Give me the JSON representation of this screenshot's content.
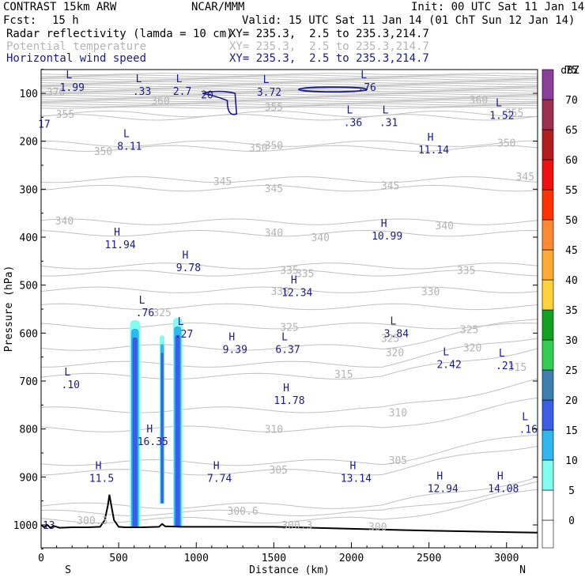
{
  "header": {
    "model": "CONTRAST 15km ARW",
    "org": "NCAR/MMM",
    "init": "Init: 00 UTC Sat 11 Jan 14",
    "fcst_label": "Fcst:",
    "fcst_value": "15 h",
    "valid": "Valid: 15 UTC Sat 11 Jan 14 (01 ChT Sun 12 Jan 14)",
    "fields": [
      {
        "name": "Radar reflectivity (lamda = 10 cm)",
        "xy": "XY= 235.3,  2.5 to 235.3,214.7",
        "color": "#000000"
      },
      {
        "name": "Potential temperature",
        "xy": "XY= 235.3,  2.5 to 235.3,214.7",
        "color": "#b4b4b4"
      },
      {
        "name": "Horizontal wind speed",
        "xy": "XY= 235.3,  2.5 to 235.3,214.7",
        "color": "#1a1a8c"
      }
    ]
  },
  "chart_data": {
    "type": "cross-section",
    "xlabel": "Distance (km)",
    "ylabel": "Pressure (hPa)",
    "x_ticks": [
      0,
      500,
      1000,
      1500,
      2000,
      2500,
      3000
    ],
    "xlim": [
      0,
      3200
    ],
    "y_ticks": [
      100,
      200,
      300,
      400,
      500,
      600,
      700,
      800,
      900,
      1000
    ],
    "ylim": [
      1050,
      50
    ],
    "x_end_labels": {
      "left": "S",
      "right": "N"
    },
    "colorbar": {
      "unit": "dBZ",
      "levels": [
        0,
        5,
        10,
        15,
        20,
        25,
        30,
        35,
        40,
        45,
        50,
        55,
        60,
        65,
        70,
        75
      ],
      "colors": [
        "#ffffff",
        "#7ffff0",
        "#2fb8f0",
        "#3a5fe6",
        "#3f7fb0",
        "#33cc55",
        "#11a222",
        "#ffd23a",
        "#ffaa33",
        "#ff8833",
        "#ff3300",
        "#ee1111",
        "#b31d1d",
        "#9c2f52",
        "#8a3f9a",
        "#c28bc8"
      ]
    },
    "theta_labels": [
      {
        "text": "370",
        "x": 95,
        "p": 97
      },
      {
        "text": "360",
        "x": 770,
        "p": 115
      },
      {
        "text": "360",
        "x": 2820,
        "p": 113
      },
      {
        "text": "355",
        "x": 155,
        "p": 143
      },
      {
        "text": "355",
        "x": 1500,
        "p": 128
      },
      {
        "text": "355",
        "x": 3050,
        "p": 140
      },
      {
        "text": "350",
        "x": 400,
        "p": 220
      },
      {
        "text": "350",
        "x": 1400,
        "p": 213
      },
      {
        "text": "350",
        "x": 1500,
        "p": 208
      },
      {
        "text": "350",
        "x": 3000,
        "p": 203
      },
      {
        "text": "345",
        "x": 1170,
        "p": 283
      },
      {
        "text": "345",
        "x": 1500,
        "p": 298
      },
      {
        "text": "345",
        "x": 2250,
        "p": 292
      },
      {
        "text": "345",
        "x": 3120,
        "p": 273
      },
      {
        "text": "340",
        "x": 150,
        "p": 365
      },
      {
        "text": "340",
        "x": 1500,
        "p": 390
      },
      {
        "text": "340",
        "x": 1800,
        "p": 400
      },
      {
        "text": "340",
        "x": 2600,
        "p": 375
      },
      {
        "text": "335",
        "x": 1600,
        "p": 468
      },
      {
        "text": "335",
        "x": 1700,
        "p": 475
      },
      {
        "text": "335",
        "x": 2740,
        "p": 468
      },
      {
        "text": "330",
        "x": 1540,
        "p": 512
      },
      {
        "text": "330",
        "x": 2510,
        "p": 513
      },
      {
        "text": "325",
        "x": 780,
        "p": 557
      },
      {
        "text": "325",
        "x": 1600,
        "p": 587
      },
      {
        "text": "325",
        "x": 2760,
        "p": 592
      },
      {
        "text": "325",
        "x": 2250,
        "p": 610
      },
      {
        "text": "320",
        "x": 2280,
        "p": 640
      },
      {
        "text": "320",
        "x": 2780,
        "p": 630
      },
      {
        "text": "315",
        "x": 1950,
        "p": 685
      },
      {
        "text": "315",
        "x": 3070,
        "p": 670
      },
      {
        "text": "310",
        "x": 2300,
        "p": 765
      },
      {
        "text": "310",
        "x": 1500,
        "p": 800
      },
      {
        "text": "305",
        "x": 1530,
        "p": 885
      },
      {
        "text": "305",
        "x": 2300,
        "p": 865
      },
      {
        "text": "300",
        "x": 2170,
        "p": 1003
      },
      {
        "text": "300.6",
        "x": 1300,
        "p": 970
      },
      {
        "text": "300.3",
        "x": 330,
        "p": 990
      },
      {
        "text": "300.3",
        "x": 1650,
        "p": 1000
      }
    ],
    "wind_extrema": [
      {
        "type": "L",
        "value": "1.99",
        "x": 200,
        "p": 82
      },
      {
        "type": "L",
        "value": ".33",
        "x": 650,
        "p": 90
      },
      {
        "type": "L",
        "value": "2.7",
        "x": 910,
        "p": 90
      },
      {
        "type": "L",
        "value": "3.72",
        "x": 1470,
        "p": 92
      },
      {
        "type": "L",
        "value": ".76",
        "x": 2100,
        "p": 82
      },
      {
        "type": "L",
        "value": ".36",
        "x": 2010,
        "p": 155
      },
      {
        "type": "L",
        "value": ".31",
        "x": 2240,
        "p": 155
      },
      {
        "type": "L",
        "value": "1.52",
        "x": 2970,
        "p": 140
      },
      {
        "type": "L",
        "value": "8.11",
        "x": 570,
        "p": 205
      },
      {
        "type": "H",
        "value": "11.14",
        "x": 2530,
        "p": 212
      },
      {
        "type": "H",
        "value": "10.99",
        "x": 2230,
        "p": 392
      },
      {
        "type": "H",
        "value": "11.94",
        "x": 510,
        "p": 410
      },
      {
        "type": "H",
        "value": "9.78",
        "x": 950,
        "p": 458
      },
      {
        "type": "H",
        "value": "12.34",
        "x": 1650,
        "p": 510
      },
      {
        "type": "L",
        "value": ".76",
        "x": 670,
        "p": 552
      },
      {
        "type": "L",
        "value": ".27",
        "x": 920,
        "p": 596
      },
      {
        "type": "L",
        "value": "3.84",
        "x": 2290,
        "p": 595
      },
      {
        "type": "H",
        "value": "9.39",
        "x": 1250,
        "p": 628
      },
      {
        "type": "L",
        "value": "6.37",
        "x": 1590,
        "p": 628
      },
      {
        "type": "L",
        "value": "2.42",
        "x": 2630,
        "p": 660
      },
      {
        "type": "L",
        "value": ".21",
        "x": 2990,
        "p": 662
      },
      {
        "type": "L",
        "value": ".10",
        "x": 190,
        "p": 702
      },
      {
        "type": "H",
        "value": "11.78",
        "x": 1600,
        "p": 735
      },
      {
        "type": "L",
        "value": ".16",
        "x": 3140,
        "p": 795
      },
      {
        "type": "H",
        "value": "16.35",
        "x": 720,
        "p": 820
      },
      {
        "type": "H",
        "value": "11.5",
        "x": 390,
        "p": 897
      },
      {
        "type": "H",
        "value": "7.74",
        "x": 1150,
        "p": 897
      },
      {
        "type": "H",
        "value": "13.14",
        "x": 2030,
        "p": 897
      },
      {
        "type": "H",
        "value": "12.94",
        "x": 2590,
        "p": 918
      },
      {
        "type": "H",
        "value": "14.08",
        "x": 2980,
        "p": 918
      }
    ],
    "wind_contour_labels": [
      {
        "text": "20",
        "x": 1070,
        "p": 111
      },
      {
        "text": "17",
        "x": 20,
        "p": 172
      },
      {
        "text": "13",
        "x": 50,
        "p": 1008
      }
    ],
    "reflectivity_columns": [
      {
        "x_center": 605,
        "half_width": 32,
        "top": 573,
        "bottom": 1003
      },
      {
        "x_center": 780,
        "half_width": 15,
        "top": 605,
        "bottom": 955
      },
      {
        "x_center": 880,
        "half_width": 30,
        "top": 568,
        "bottom": 1003
      }
    ],
    "terrain": {
      "x": [
        0,
        20,
        40,
        60,
        80,
        120,
        200,
        300,
        380,
        410,
        430,
        440,
        450,
        470,
        500,
        540,
        580,
        650,
        760,
        780,
        800,
        900,
        1000,
        1200,
        1500,
        2000,
        2500,
        3000,
        3200
      ],
      "p": [
        1000,
        1005,
        1000,
        1006,
        1002,
        1006,
        1005,
        1005,
        1004,
        990,
        960,
        937,
        955,
        990,
        1004,
        1005,
        1005,
        1005,
        1004,
        998,
        1003,
        1004,
        1004,
        1004,
        1004,
        1008,
        1012,
        1015,
        1016
      ]
    }
  }
}
